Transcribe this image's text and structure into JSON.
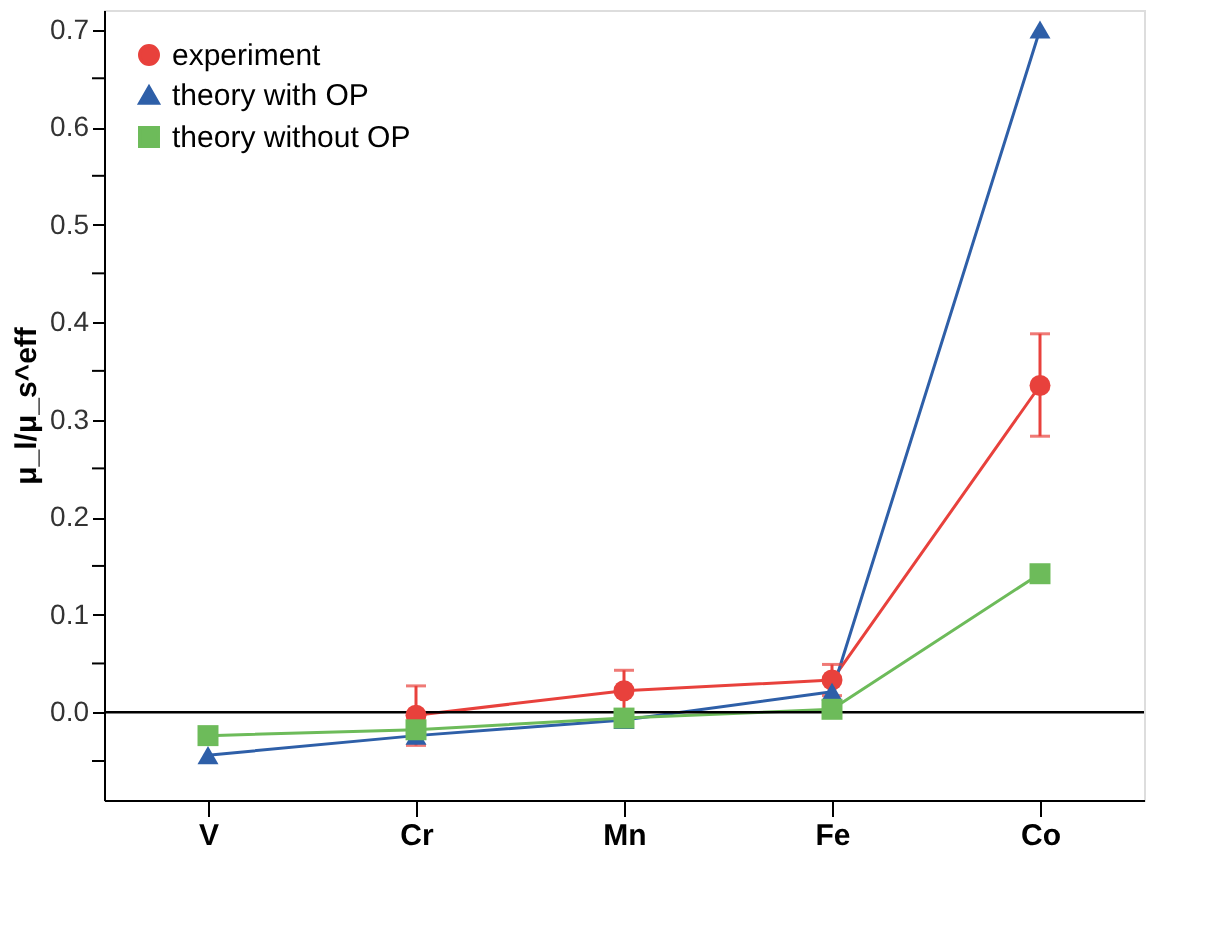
{
  "chart_data": {
    "type": "line",
    "ylabel": "μ_l/μ_s^eff",
    "categories": [
      "V",
      "Cr",
      "Mn",
      "Fe",
      "Co"
    ],
    "ylim": [
      -0.09,
      0.72
    ],
    "yticks": [
      {
        "value": -0.05,
        "label": null
      },
      {
        "value": 0,
        "label": "0.0"
      },
      {
        "value": 0.05,
        "label": null
      },
      0.1,
      {
        "value": 0.15,
        "label": null
      },
      0.2,
      {
        "value": 0.25,
        "label": null
      },
      0.3,
      {
        "value": 0.35,
        "label": null
      },
      0.4,
      {
        "value": 0.45,
        "label": null
      },
      0.5,
      {
        "value": 0.55,
        "label": null
      },
      0.6,
      {
        "value": 0.65,
        "label": null
      },
      0.7
    ],
    "series": [
      {
        "name": "experiment",
        "color": "#e8413c",
        "marker": "circle",
        "values": [
          null,
          -0.003,
          0.022,
          0.033,
          0.335
        ],
        "errors": [
          null,
          [
            -0.034,
            0.027
          ],
          [
            0.001,
            0.043
          ],
          [
            0.017,
            0.049
          ],
          [
            0.283,
            0.388
          ]
        ]
      },
      {
        "name": "theory with OP",
        "color": "#2e5fa8",
        "marker": "triangle",
        "values": [
          -0.044,
          -0.024,
          -0.008,
          0.021,
          0.7
        ]
      },
      {
        "name": "theory without OP",
        "color": "#6dbb5a",
        "marker": "square",
        "values": [
          -0.024,
          -0.018,
          -0.006,
          0.003,
          0.142
        ]
      }
    ],
    "ref_lines": [
      {
        "axis": "y",
        "value": 0,
        "color": "#000000"
      }
    ],
    "legend": "top left",
    "grid": false
  }
}
